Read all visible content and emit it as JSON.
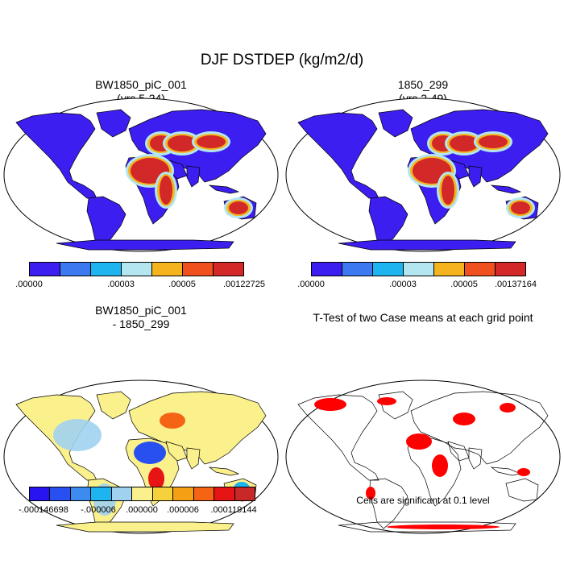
{
  "figure": {
    "title": "DJF DSTDEP (kg/m2/d)"
  },
  "panels": [
    {
      "title_line1": "BW1850_piC_001",
      "title_line2": "(yrs 5-24)",
      "type": "field",
      "colorbar": {
        "colors": [
          "#3c1ef0",
          "#3c78f0",
          "#1eb4f0",
          "#b4e6f0",
          "#f5b41e",
          "#f0501e",
          "#d22828"
        ],
        "tick_labels": [
          ".00000",
          ".00003",
          ".00005",
          ".00122725"
        ]
      }
    },
    {
      "title_line1": "1850_299",
      "title_line2": "(yrs 2-49)",
      "type": "field",
      "colorbar": {
        "colors": [
          "#3c1ef0",
          "#3c78f0",
          "#1eb4f0",
          "#b4e6f0",
          "#f5b41e",
          "#f0501e",
          "#d22828"
        ],
        "tick_labels": [
          ".00000",
          ".00003",
          ".00005",
          ".00137164"
        ]
      }
    },
    {
      "title_line1": "BW1850_piC_001",
      "title_line2": "- 1850_299",
      "type": "difference",
      "colorbar": {
        "colors": [
          "#2814f0",
          "#2850f0",
          "#3c8cf0",
          "#1eb4f0",
          "#a0d2f0",
          "#faf08c",
          "#f5d23c",
          "#f5a014",
          "#f56414",
          "#e61414",
          "#c82828"
        ],
        "tick_labels": [
          "-.000146698",
          "-.000006",
          ".000000",
          ".000006",
          ".000119144"
        ]
      }
    },
    {
      "title_line1": "T-Test of two Case means at each grid point",
      "type": "significance",
      "note": "Cells are significant at 0.1 level",
      "significant_color": "#ff0000"
    }
  ],
  "colors": {
    "ocean": "#ffffff",
    "outline": "#000000",
    "low_land": "#3c1ef0",
    "diff_neutral": "#faf08c"
  }
}
